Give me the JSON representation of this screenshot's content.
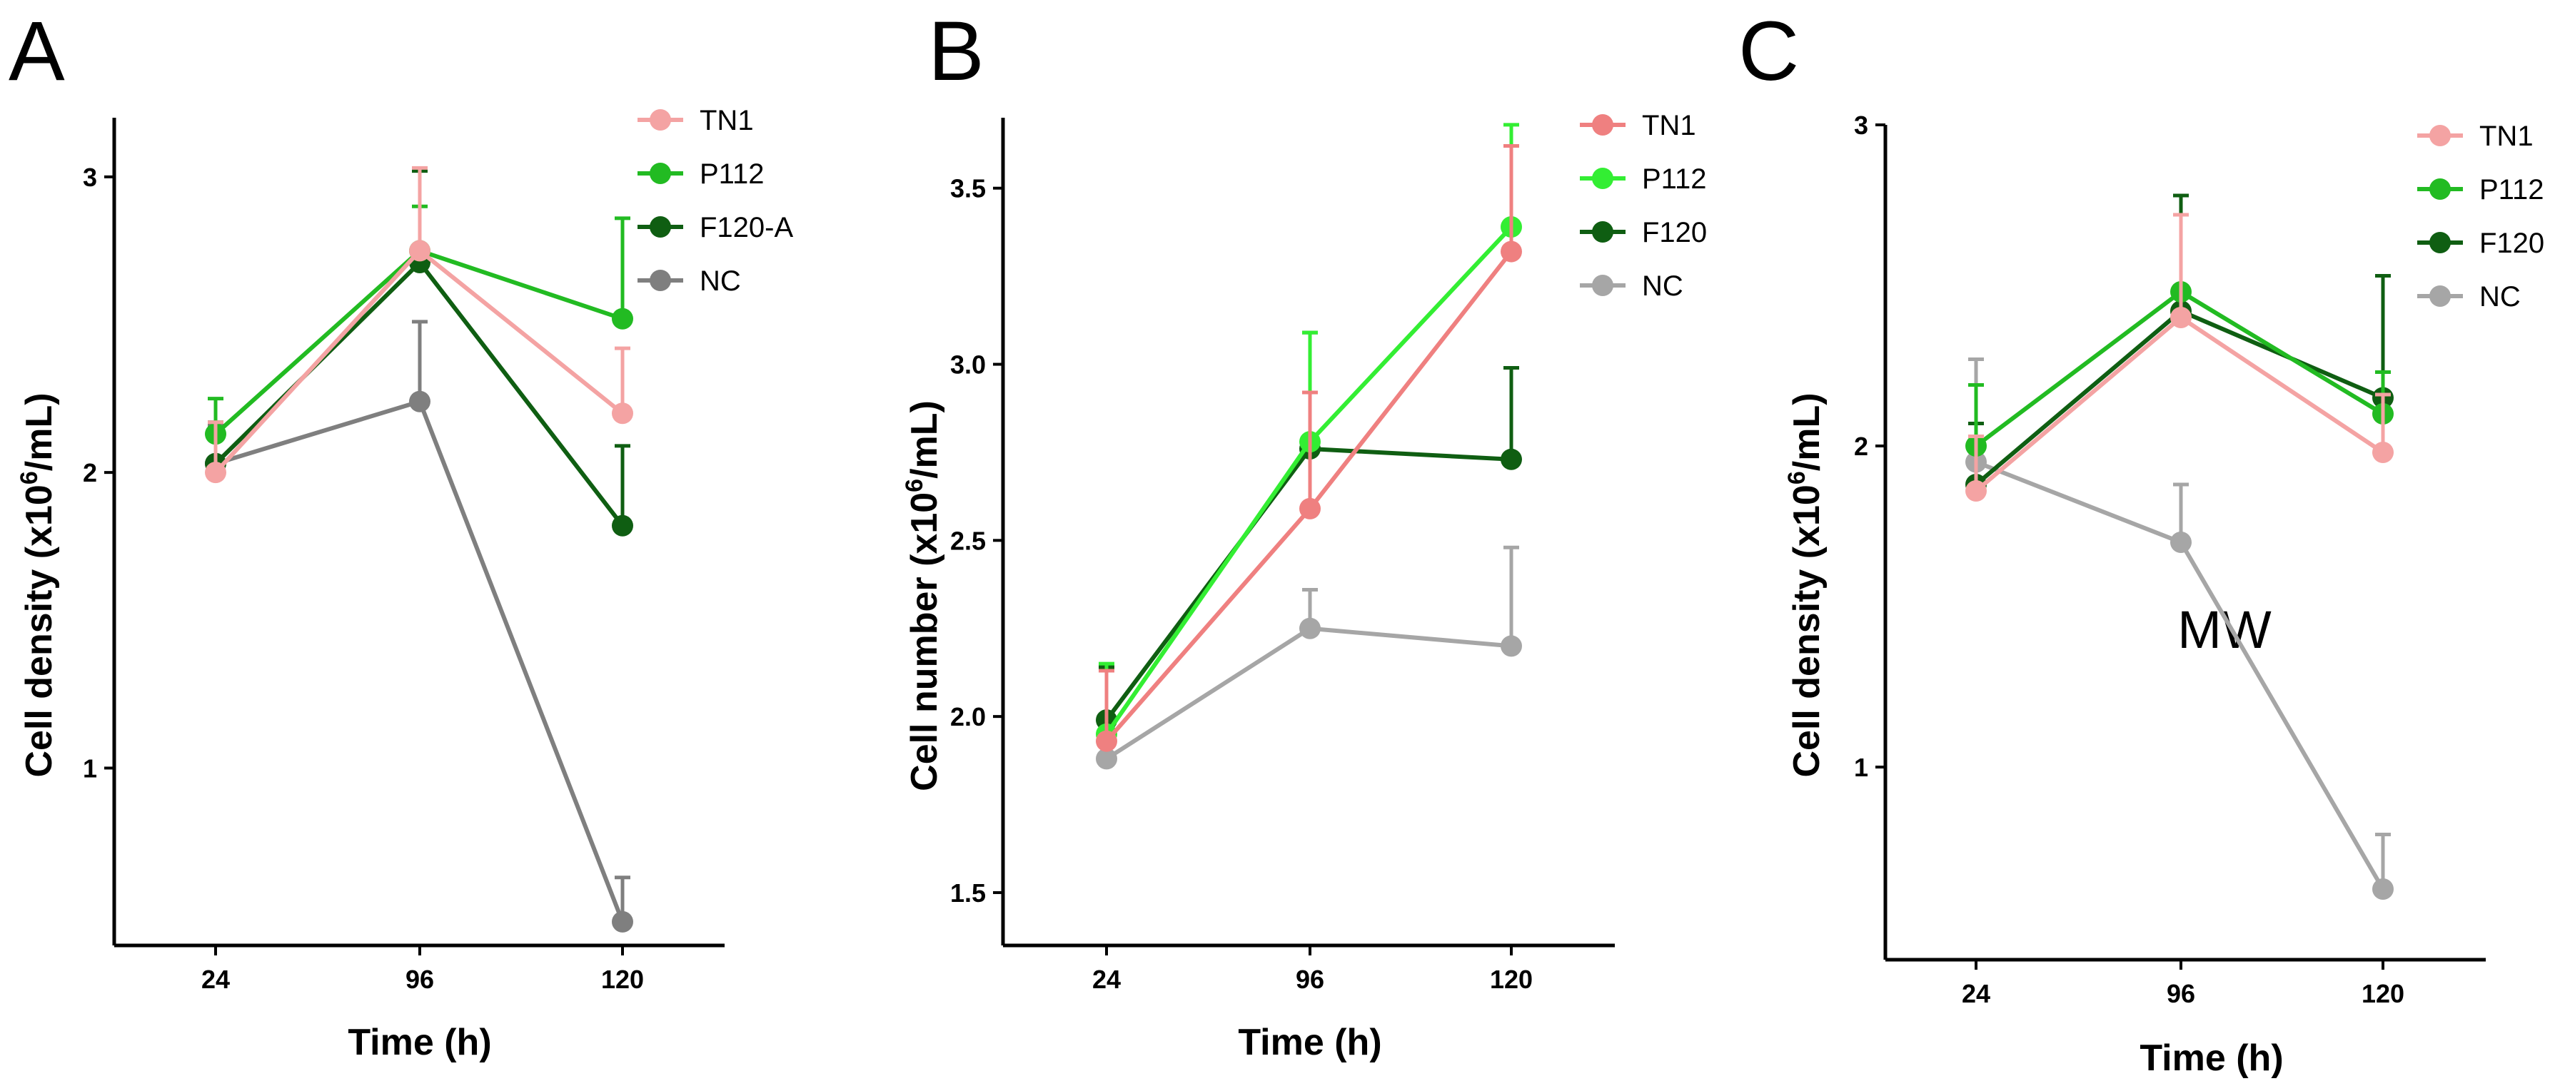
{
  "chart_data": [
    {
      "panel": "A",
      "type": "line",
      "xlabel": "Time (h)",
      "ylabel_main": "Cell density (x10",
      "ylabel_sup": "6",
      "ylabel_tail": "/mL)",
      "categories": [
        "24",
        "96",
        "120"
      ],
      "ylim": [
        0.4,
        3.2
      ],
      "yticks": [
        "1",
        "2",
        "3"
      ],
      "legend_position": "top-right",
      "series": [
        {
          "name": "TN1",
          "color": "#f4a3a3",
          "values": [
            2.0,
            2.75,
            2.2
          ],
          "errors": [
            0.17,
            0.28,
            0.22
          ]
        },
        {
          "name": "P112",
          "color": "#22bb22",
          "values": [
            2.13,
            2.75,
            2.52
          ],
          "errors": [
            0.12,
            0.15,
            0.34
          ]
        },
        {
          "name": "F120-A",
          "color": "#0f5e12",
          "values": [
            2.03,
            2.71,
            1.82
          ],
          "errors": [
            0.14,
            0.31,
            0.27
          ]
        },
        {
          "name": "NC",
          "color": "#7f7f7f",
          "values": [
            2.03,
            2.24,
            0.48
          ],
          "errors": [
            0.13,
            0.27,
            0.15
          ]
        }
      ]
    },
    {
      "panel": "B",
      "type": "line",
      "xlabel": "Time (h)",
      "ylabel_main": "Cell number (x10",
      "ylabel_sup": "6",
      "ylabel_tail": "/mL)",
      "categories": [
        "24",
        "96",
        "120"
      ],
      "ylim": [
        1.35,
        3.7
      ],
      "yticks": [
        "1.5",
        "2.0",
        "2.5",
        "3.0",
        "3.5"
      ],
      "legend_position": "top-right",
      "series": [
        {
          "name": "TN1",
          "color": "#ef8080",
          "values": [
            1.93,
            2.59,
            3.32
          ],
          "errors": [
            0.2,
            0.33,
            0.3
          ]
        },
        {
          "name": "P112",
          "color": "#33ee33",
          "values": [
            1.95,
            2.78,
            3.39
          ],
          "errors": [
            0.2,
            0.31,
            0.29
          ]
        },
        {
          "name": "F120",
          "color": "#0f5e12",
          "values": [
            1.99,
            2.76,
            2.73
          ],
          "errors": [
            0.15,
            0.33,
            0.26
          ]
        },
        {
          "name": "NC",
          "color": "#a6a6a6",
          "values": [
            1.88,
            2.25,
            2.2
          ],
          "errors": [
            0.06,
            0.11,
            0.28
          ]
        }
      ]
    },
    {
      "panel": "C",
      "type": "line",
      "xlabel": "Time (h)",
      "ylabel_main": "Cell density (x10",
      "ylabel_sup": "6",
      "ylabel_tail": "/mL)",
      "categories": [
        "24",
        "96",
        "120"
      ],
      "ylim": [
        0.4,
        3.0
      ],
      "yticks": [
        "1",
        "2",
        "3"
      ],
      "legend_position": "top-right",
      "annotation": "MW",
      "series": [
        {
          "name": "TN1",
          "color": "#f4a3a3",
          "values": [
            1.86,
            2.4,
            1.98
          ],
          "errors": [
            0.17,
            0.32,
            0.18
          ]
        },
        {
          "name": "P112",
          "color": "#22bb22",
          "values": [
            2.0,
            2.48,
            2.1
          ],
          "errors": [
            0.19,
            0.24,
            0.13
          ]
        },
        {
          "name": "F120",
          "color": "#0f5e12",
          "values": [
            1.88,
            2.42,
            2.15
          ],
          "errors": [
            0.19,
            0.36,
            0.38
          ]
        },
        {
          "name": "NC",
          "color": "#a6a6a6",
          "values": [
            1.95,
            1.7,
            0.62
          ],
          "errors": [
            0.32,
            0.18,
            0.17
          ]
        }
      ]
    }
  ]
}
